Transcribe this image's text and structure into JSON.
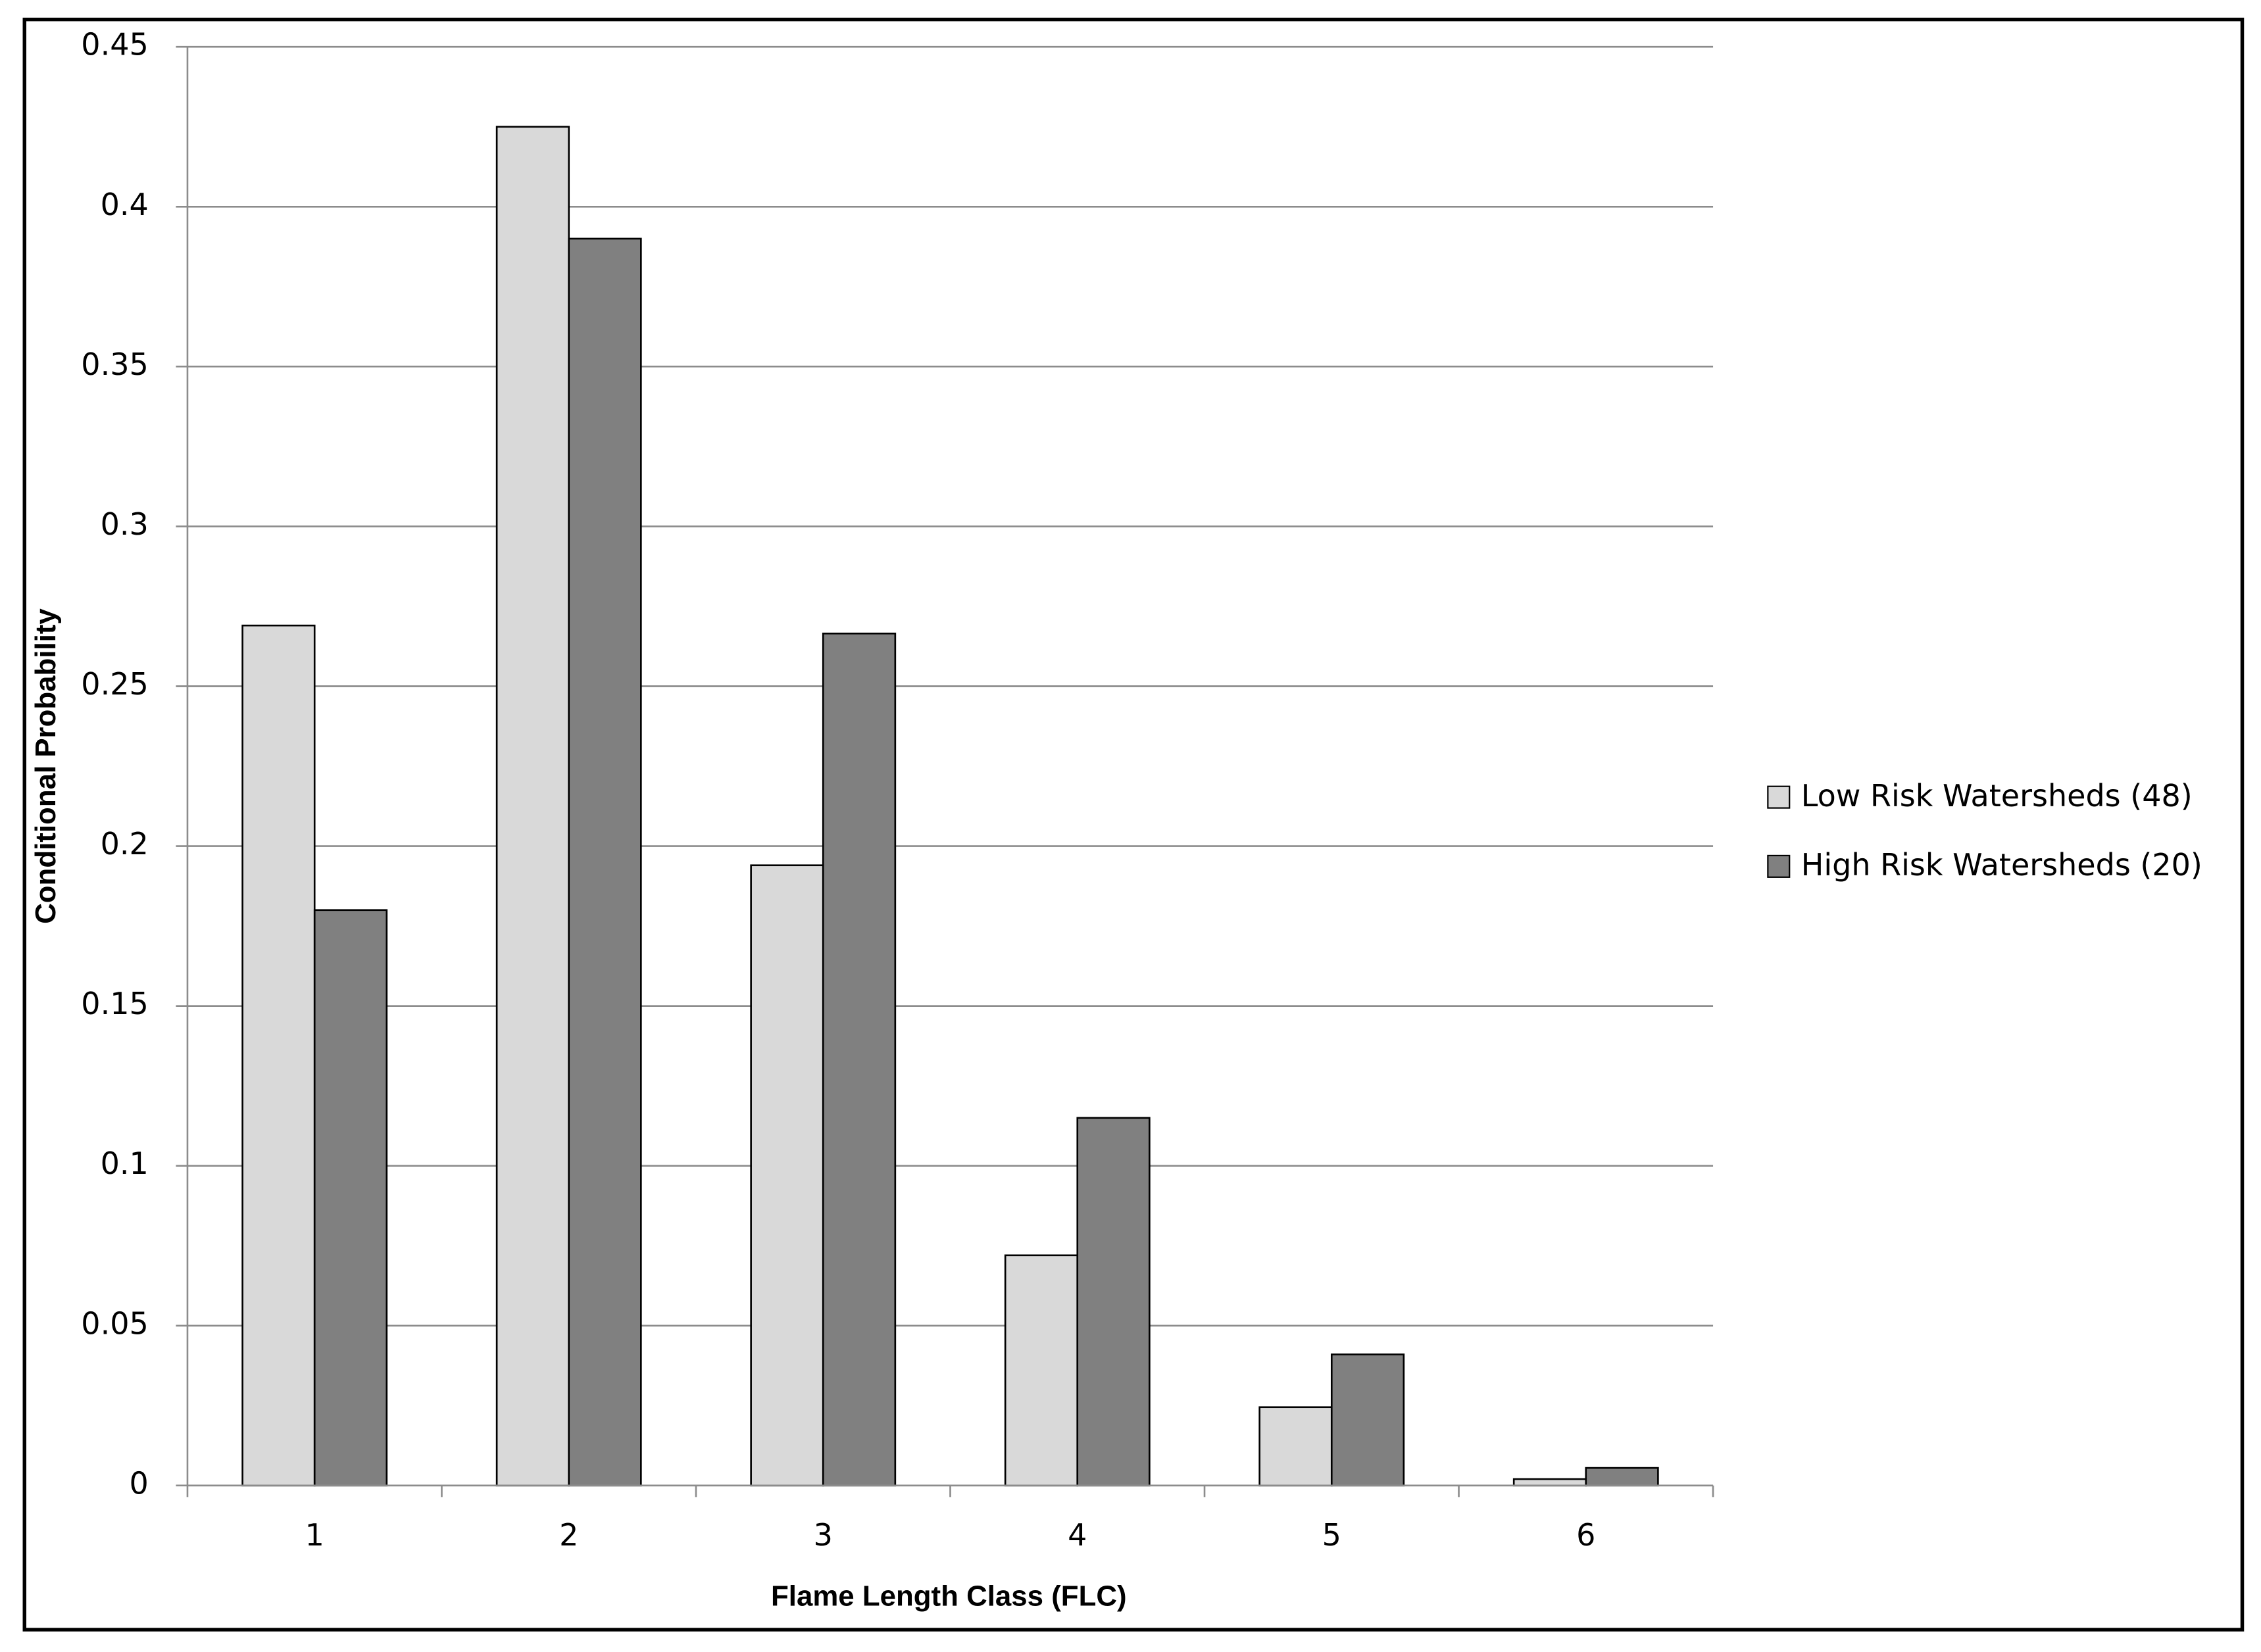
{
  "chart_data": {
    "type": "bar",
    "x_label": "Flame Length Class (FLC)",
    "y_label": "Conditional Probability",
    "categories": [
      "1",
      "2",
      "3",
      "4",
      "5",
      "6"
    ],
    "series": [
      {
        "name": "Low Risk Watersheds (48)",
        "color": "#d9d9d9",
        "values": [
          0.269,
          0.425,
          0.194,
          0.072,
          0.0245,
          0.002
        ]
      },
      {
        "name": "High Risk Watersheds (20)",
        "color": "#808080",
        "values": [
          0.18,
          0.39,
          0.2665,
          0.115,
          0.041,
          0.0055
        ]
      }
    ],
    "ylim": [
      0,
      0.45
    ],
    "yticks": [
      0,
      0.05,
      0.1,
      0.15,
      0.2,
      0.25,
      0.3,
      0.35,
      0.4,
      0.45
    ],
    "grid": true,
    "legend": "right"
  }
}
